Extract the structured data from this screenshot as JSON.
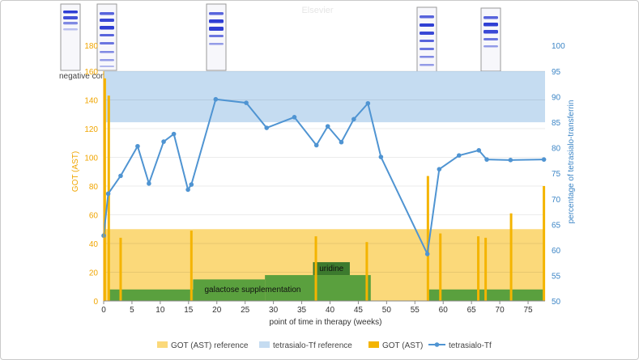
{
  "chart_data": {
    "type": "bar",
    "title": "",
    "watermark": "Elsevier",
    "xlabel": "point of time in therapy (weeks)",
    "ylabel_left": "GOT (AST)",
    "ylabel_right": "percentage of tetrasialo-transferrin",
    "xlim": [
      0,
      78
    ],
    "xticks": [
      0,
      5,
      10,
      15,
      20,
      25,
      30,
      35,
      40,
      45,
      50,
      55,
      60,
      65,
      70,
      75
    ],
    "ylim_left": [
      0,
      160
    ],
    "yticks_left": [
      0,
      20,
      40,
      60,
      80,
      100,
      120,
      140,
      160
    ],
    "left_panel_ticks": [
      180
    ],
    "ylim_right": [
      50,
      95
    ],
    "yticks_right": [
      50,
      55,
      60,
      65,
      70,
      75,
      80,
      85,
      90,
      95
    ],
    "right_panel_ticks": [
      100
    ],
    "gel_label": "negative control",
    "gel_positions": [
      0.6,
      13.5,
      57.0,
      67.5
    ],
    "got_reference": {
      "name": "GOT (AST) reference",
      "range": [
        0,
        50
      ],
      "color": "#fbd97a"
    },
    "tf_reference": {
      "name": "tetrasialo-Tf reference",
      "range": [
        85,
        95
      ],
      "color": "#c5dcf1"
    },
    "got_series": {
      "name": "GOT (AST)",
      "color": "#f4b400",
      "x": [
        0.2,
        0.9,
        3.0,
        15.5,
        37.5,
        46.5,
        57.3,
        59.5,
        66.2,
        67.5,
        72.0,
        77.8
      ],
      "values": [
        155,
        143,
        44,
        49,
        45,
        41,
        87,
        47,
        45,
        44,
        61,
        80
      ]
    },
    "tf_series": {
      "name": "tetrasialo-Tf",
      "color": "#4f94d2",
      "x": [
        0,
        0.8,
        3.0,
        6.0,
        8.0,
        10.6,
        12.4,
        14.9,
        15.5,
        19.8,
        25.2,
        28.8,
        33.7,
        37.6,
        39.6,
        42.0,
        44.2,
        46.7,
        49.0,
        57.2,
        59.3,
        62.8,
        66.3,
        67.7,
        71.9,
        77.8
      ],
      "values": [
        62.8,
        71.0,
        74.5,
        80.3,
        73.0,
        81.2,
        82.7,
        71.8,
        72.8,
        89.5,
        88.8,
        83.9,
        86.0,
        80.5,
        84.2,
        81.1,
        85.6,
        88.7,
        78.2,
        59.2,
        75.8,
        78.5,
        79.5,
        77.7,
        77.6,
        77.7
      ]
    },
    "galactose": {
      "label": "galactose supplementation",
      "color": "#5aa03e",
      "steps": [
        {
          "x": [
            0.8,
            15.8
          ],
          "value": 8
        },
        {
          "x": [
            15.8,
            28.5
          ],
          "value": 15
        },
        {
          "x": [
            28.5,
            47.2
          ],
          "value": 18
        },
        {
          "x": [
            57.3,
            78
          ],
          "value": 8
        }
      ]
    },
    "uridine": {
      "label": "uridine",
      "color": "#3c7a2e",
      "x": [
        37.0,
        43.5
      ],
      "range": [
        18,
        27
      ]
    },
    "legend": [
      {
        "label": "GOT (AST) reference",
        "style": "box",
        "color": "#fbd97a"
      },
      {
        "label": "tetrasialo-Tf reference",
        "style": "box",
        "color": "#c5dcf1"
      },
      {
        "label": "GOT (AST)",
        "style": "box",
        "color": "#f4b400"
      },
      {
        "label": "tetrasialo-Tf",
        "style": "line-marker",
        "color": "#4f94d2"
      }
    ]
  }
}
